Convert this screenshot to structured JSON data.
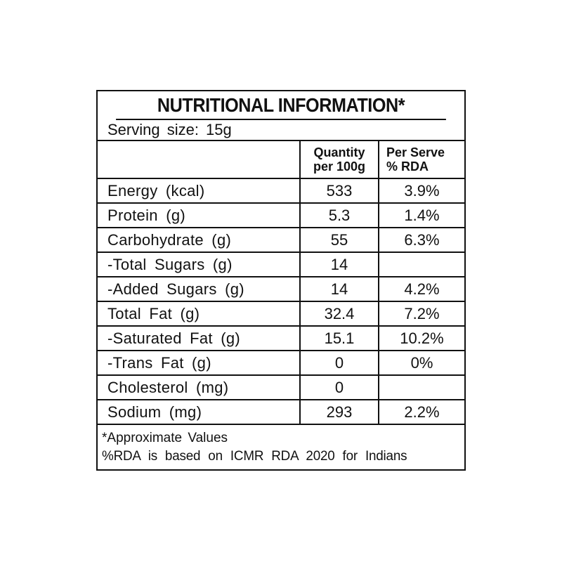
{
  "panel": {
    "title": "NUTRITIONAL INFORMATION*",
    "serving": "Serving size: 15g",
    "headers": {
      "nutrient": "",
      "quantity_line1": "Quantity",
      "quantity_line2": "per 100g",
      "rda_line1": "Per Serve",
      "rda_line2": "% RDA"
    },
    "rows": [
      {
        "label": "Energy (kcal)",
        "quantity": "533",
        "rda": "3.9%"
      },
      {
        "label": "Protein (g)",
        "quantity": "5.3",
        "rda": "1.4%"
      },
      {
        "label": "Carbohydrate (g)",
        "quantity": "55",
        "rda": "6.3%"
      },
      {
        "label": "-Total Sugars (g)",
        "quantity": "14",
        "rda": ""
      },
      {
        "label": "-Added Sugars (g)",
        "quantity": "14",
        "rda": "4.2%"
      },
      {
        "label": "Total Fat (g)",
        "quantity": "32.4",
        "rda": "7.2%"
      },
      {
        "label": "-Saturated Fat (g)",
        "quantity": "15.1",
        "rda": "10.2%"
      },
      {
        "label": "-Trans Fat (g)",
        "quantity": "0",
        "rda": "0%"
      },
      {
        "label": "Cholesterol (mg)",
        "quantity": "0",
        "rda": ""
      },
      {
        "label": "Sodium (mg)",
        "quantity": "293",
        "rda": "2.2%"
      }
    ],
    "footnote_1": "*Approximate Values",
    "footnote_2": "%RDA is based on ICMR RDA 2020 for Indians"
  }
}
